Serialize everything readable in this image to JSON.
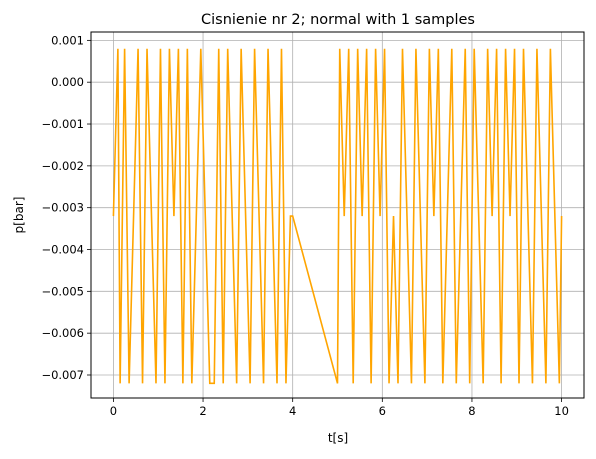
{
  "chart_data": {
    "type": "line",
    "title": "Cisnienie nr 2; normal with 1 samples",
    "xlabel": "t[s]",
    "ylabel": "p[bar]",
    "xlim": [
      -0.5,
      10.5
    ],
    "ylim": [
      -0.00755,
      0.0012
    ],
    "x_ticks": [
      0,
      2,
      4,
      6,
      8,
      10
    ],
    "x_tick_labels": [
      "0",
      "2",
      "4",
      "6",
      "8",
      "10"
    ],
    "y_ticks": [
      0.001,
      0.0,
      -0.001,
      -0.002,
      -0.003,
      -0.004,
      -0.005,
      -0.006,
      -0.007
    ],
    "y_tick_labels": [
      "0.001",
      "0.000",
      "−0.001",
      "−0.002",
      "−0.003",
      "−0.004",
      "−0.005",
      "−0.006",
      "−0.007"
    ],
    "grid": true,
    "line_color": "#ffa500",
    "levels": [
      0.0008,
      -0.0032,
      -0.0072
    ],
    "series": [
      {
        "x": [
          0.0,
          0.1,
          0.15,
          0.25,
          0.35,
          0.45,
          0.55,
          0.65,
          0.75,
          0.85,
          0.95,
          1.05,
          1.15,
          1.25,
          1.35,
          1.45,
          1.55,
          1.65,
          1.75,
          1.85,
          1.95,
          2.05,
          2.15,
          2.25,
          2.35,
          2.45,
          2.55,
          2.65,
          2.75,
          2.85,
          2.95,
          3.05,
          3.15,
          3.25,
          3.35,
          3.45,
          3.55,
          3.65,
          3.75,
          3.85,
          3.95,
          4.0,
          5.0,
          5.05,
          5.15,
          5.25,
          5.35,
          5.45,
          5.55,
          5.65,
          5.75,
          5.85,
          5.95,
          6.05,
          6.15,
          6.25,
          6.35,
          6.45,
          6.55,
          6.65,
          6.75,
          6.85,
          6.95,
          7.05,
          7.15,
          7.25,
          7.35,
          7.45,
          7.55,
          7.65,
          7.75,
          7.85,
          7.95,
          8.05,
          8.15,
          8.25,
          8.35,
          8.45,
          8.55,
          8.65,
          8.75,
          8.85,
          8.95,
          9.05,
          9.15,
          9.25,
          9.35,
          9.45,
          9.55,
          9.65,
          9.75,
          9.85,
          9.95,
          10.0
        ],
        "y": [
          -0.0032,
          0.0008,
          -0.0072,
          0.0008,
          -0.0072,
          -0.0032,
          0.0008,
          -0.0072,
          0.0008,
          -0.0032,
          -0.0072,
          0.0008,
          -0.0072,
          0.0008,
          -0.0032,
          0.0008,
          -0.0072,
          0.0008,
          -0.0072,
          -0.0032,
          0.0008,
          -0.0032,
          -0.0072,
          -0.0072,
          0.0008,
          -0.0072,
          0.0008,
          -0.0032,
          -0.0072,
          0.0008,
          -0.0032,
          -0.0072,
          0.0008,
          -0.0032,
          -0.0072,
          0.0008,
          -0.0032,
          -0.0072,
          0.0008,
          -0.0072,
          -0.0032,
          -0.0032,
          -0.0072,
          0.0008,
          -0.0032,
          0.0008,
          -0.0072,
          0.0008,
          -0.0032,
          0.0008,
          -0.0072,
          0.0008,
          -0.0032,
          0.0008,
          -0.0072,
          -0.0032,
          -0.0072,
          0.0008,
          -0.0032,
          -0.0072,
          0.0008,
          -0.0032,
          -0.0072,
          0.0008,
          -0.0032,
          0.0008,
          -0.0072,
          -0.0032,
          0.0008,
          -0.0072,
          -0.0032,
          0.0008,
          -0.0072,
          0.0008,
          -0.0032,
          -0.0072,
          0.0008,
          -0.0032,
          0.0008,
          -0.0072,
          0.0008,
          -0.0032,
          0.0008,
          -0.0072,
          0.0008,
          -0.0032,
          -0.0072,
          0.0008,
          -0.0032,
          -0.0072,
          0.0008,
          -0.0032,
          -0.0072,
          -0.0032
        ]
      }
    ]
  }
}
